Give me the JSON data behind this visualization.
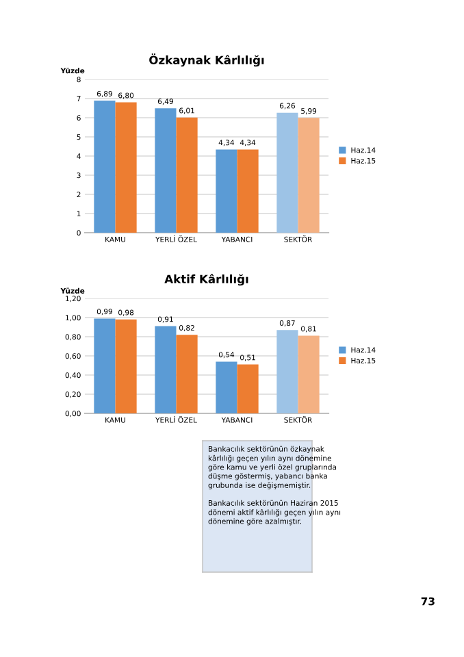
{
  "chart_data": [
    {
      "type": "bar",
      "title": "Özkaynak Kârlılığı",
      "ylabel": "Yüzde",
      "categories": [
        "KAMU",
        "YERLİ ÖZEL",
        "YABANCI",
        "SEKTÖR"
      ],
      "series": [
        {
          "name": "Haz.14",
          "color": "#5b9bd5",
          "colors": [
            "#5b9bd5",
            "#5b9bd5",
            "#5b9bd5",
            "#9dc3e6"
          ],
          "values": [
            6.89,
            6.49,
            4.34,
            6.26
          ],
          "value_labels": [
            "6,89",
            "6,49",
            "4,34",
            "6,26"
          ]
        },
        {
          "name": "Haz.15",
          "color": "#ed7d31",
          "colors": [
            "#ed7d31",
            "#ed7d31",
            "#ed7d31",
            "#f4b183"
          ],
          "values": [
            6.8,
            6.01,
            4.34,
            5.99
          ],
          "value_labels": [
            "6,80",
            "6,01",
            "4,34",
            "5,99"
          ]
        }
      ],
      "ylim": [
        0,
        8
      ],
      "yticks": [
        0,
        1,
        2,
        3,
        4,
        5,
        6,
        7,
        8
      ],
      "grid": "y",
      "legend": "right"
    },
    {
      "type": "bar",
      "title": "Aktif Kârlılığı",
      "ylabel": "Yüzde",
      "categories": [
        "KAMU",
        "YERLİ ÖZEL",
        "YABANCI",
        "SEKTÖR"
      ],
      "series": [
        {
          "name": "Haz.14",
          "color": "#5b9bd5",
          "colors": [
            "#5b9bd5",
            "#5b9bd5",
            "#5b9bd5",
            "#9dc3e6"
          ],
          "values": [
            0.99,
            0.91,
            0.54,
            0.87
          ],
          "value_labels": [
            "0,99",
            "0,91",
            "0,54",
            "0,87"
          ]
        },
        {
          "name": "Haz.15",
          "color": "#ed7d31",
          "colors": [
            "#ed7d31",
            "#ed7d31",
            "#ed7d31",
            "#f4b183"
          ],
          "values": [
            0.98,
            0.82,
            0.51,
            0.81
          ],
          "value_labels": [
            "0,98",
            "0,82",
            "0,51",
            "0,81"
          ]
        }
      ],
      "ylim": [
        0,
        1.2
      ],
      "yticks": [
        {
          "value": 0,
          "label": "0,00"
        },
        {
          "value": 0.2,
          "label": "0,20"
        },
        {
          "value": 0.4,
          "label": "0,40"
        },
        {
          "value": 0.6,
          "label": "0,60"
        },
        {
          "value": 0.8,
          "label": "0,80"
        },
        {
          "value": 1.0,
          "label": "1,00"
        },
        {
          "value": 1.2,
          "label": "1,20"
        }
      ],
      "grid": "y",
      "legend": "right",
      "annotations": [
        "Bankacılık sektörünün özkaynak kârlılığı geçen yılın aynı dönemine göre kamu ve yerli özel gruplarında düşme göstermiş, yabancı banka grubunda ise değişmemiştir.",
        "Bankacılık sektörünün Haziran 2015 dönemi aktif kârlılığı geçen yılın aynı dönemine göre azalmıştır.",
        "73"
      ]
    }
  ]
}
